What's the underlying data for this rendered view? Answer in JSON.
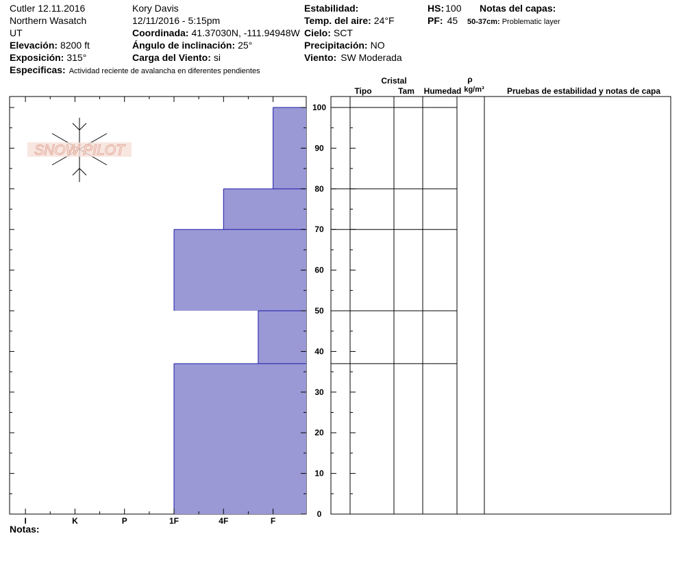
{
  "header": {
    "title": "Cutler 12.11.2016",
    "region": "Northern Wasatch",
    "state": "UT",
    "observer": "Kory Davis",
    "datetime": "12/11/2016 - 5:15pm",
    "elevation": {
      "label": "Elevación:",
      "value": "8200 ft"
    },
    "aspect": {
      "label": "Exposición:",
      "value": "315°"
    },
    "specifics": {
      "label": "Especificas:",
      "value": "Actividad reciente de avalancha en diferentes pendientes"
    },
    "coordinates": {
      "label": "Coordinada:",
      "value": "41.37030N, -111.94948W"
    },
    "slope": {
      "label": "Ángulo de inclinación:",
      "value": "25°"
    },
    "wind_loading": {
      "label": "Carga del Viento:",
      "value": "si"
    },
    "stability": {
      "label": "Estabilidad:"
    },
    "air_temp": {
      "label": "Temp. del aire:",
      "value": "24°F"
    },
    "sky": {
      "label": "Cielo:",
      "value": "SCT"
    },
    "precip": {
      "label": "Precipitación:",
      "value": "NO"
    },
    "wind": {
      "label": "Viento:",
      "value": "SW Moderada"
    },
    "hs": {
      "label": "HS:",
      "value": "100"
    },
    "pf": {
      "label": "PF:",
      "value": "45"
    },
    "layer_notes_title": "Notas del capas:",
    "layer_notes": [
      {
        "label": "50-37cm:",
        "value": "Problematic layer"
      }
    ],
    "logo": "SNOW PILOT"
  },
  "table": {
    "columns": [
      "Cristal",
      "Tipo",
      "Tam",
      "Humedad",
      "ρ",
      "kg/m³",
      "Pruebas de estabilidad y notas de capa"
    ]
  },
  "footer": {
    "notes_label": "Notas:"
  },
  "chart_data": {
    "type": "hardness-profile",
    "y_top": [
      100,
      80,
      70,
      50,
      37
    ],
    "y_bottom": [
      80,
      70,
      50,
      37,
      0
    ],
    "values": [
      1,
      2,
      3,
      1.3,
      3
    ],
    "color": "#9a99d6",
    "edge_color": "#1a1aa6",
    "xlim": [
      6.32,
      0.33
    ],
    "xticks": [
      {
        "value": 6,
        "label": "I"
      },
      {
        "value": 5,
        "label": "K"
      },
      {
        "value": 4,
        "label": "P"
      },
      {
        "value": 3,
        "label": "1F"
      },
      {
        "value": 2,
        "label": "4F"
      },
      {
        "value": 1,
        "label": "F"
      }
    ],
    "ylim": [
      0,
      102.7
    ],
    "yticks": [
      0,
      10,
      20,
      30,
      40,
      50,
      60,
      70,
      80,
      90,
      100
    ]
  }
}
